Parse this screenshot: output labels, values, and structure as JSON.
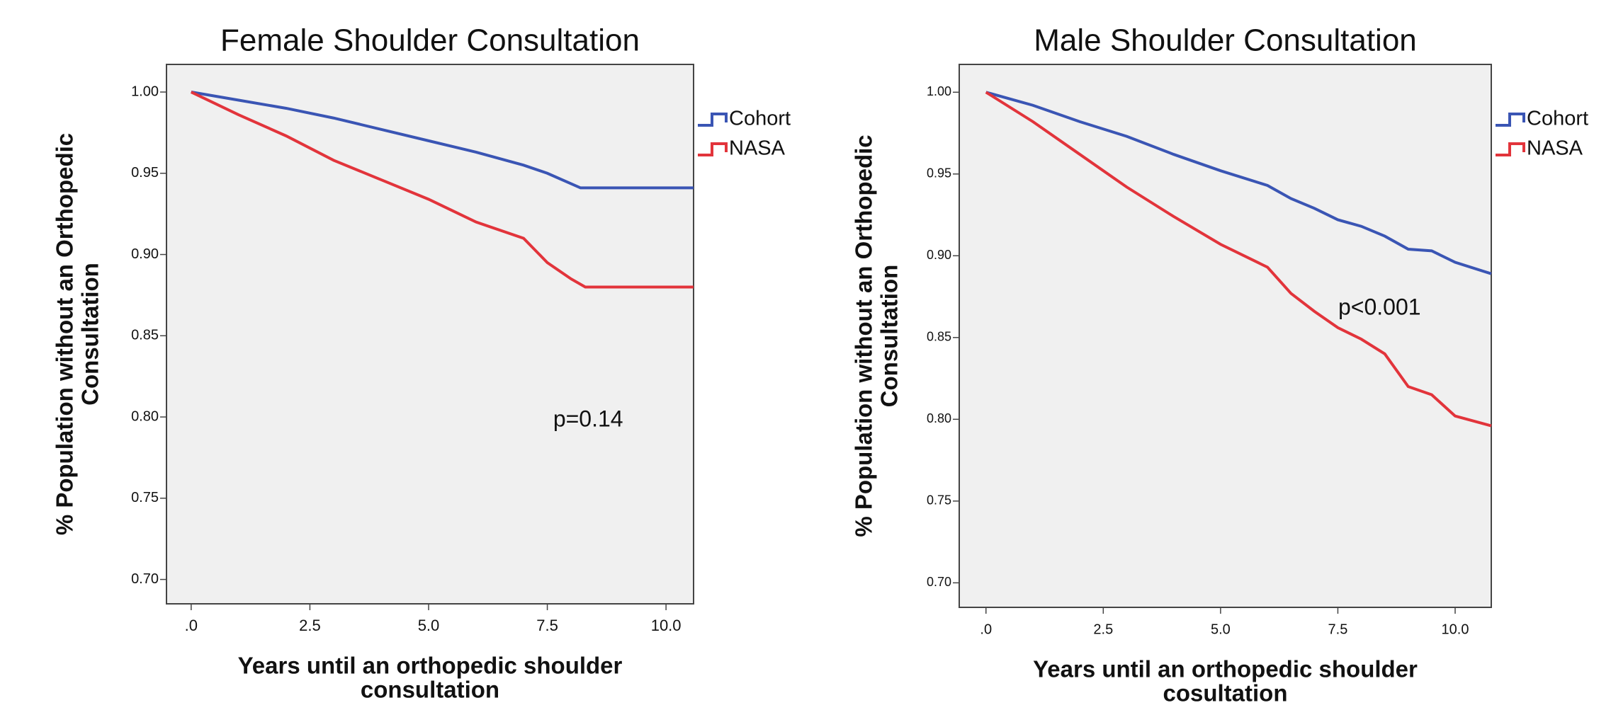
{
  "chart_data": [
    {
      "type": "line",
      "title": "Female Shoulder Consultation",
      "xlabel": [
        "Years until an orthopedic shoulder",
        "consultation"
      ],
      "ylabel": [
        "% Population without an Orthopedic",
        "Consultation"
      ],
      "xlim": [
        -0.52,
        10.58
      ],
      "ylim": [
        0.685,
        1.017
      ],
      "xticks": [
        {
          "value": 0,
          "label": ".0"
        },
        2.5,
        {
          "value": 5,
          "label": "5.0"
        },
        7.5,
        {
          "value": 10,
          "label": "10.0"
        }
      ],
      "yticks": [
        {
          "value": 1,
          "label": "1.00"
        },
        0.95,
        {
          "value": 0.9,
          "label": "0.90"
        },
        0.85,
        {
          "value": 0.8,
          "label": "0.80"
        },
        0.75,
        {
          "value": 0.7,
          "label": "0.70"
        }
      ],
      "legend": "right",
      "annotation": "p=0.14",
      "series": [
        {
          "name": "Cohort",
          "color": "#3a55b4",
          "x": [
            0,
            1,
            2,
            3,
            4,
            5,
            6,
            7,
            7.5,
            8.2,
            10.58
          ],
          "values": [
            1.0,
            0.995,
            0.99,
            0.984,
            0.977,
            0.97,
            0.963,
            0.955,
            0.95,
            0.941,
            0.941
          ]
        },
        {
          "name": "NASA",
          "color": "#e2343b",
          "x": [
            0,
            1,
            2,
            3,
            4,
            5,
            6,
            7,
            7.5,
            8,
            8.3,
            10.58
          ],
          "values": [
            1.0,
            0.986,
            0.973,
            0.958,
            0.946,
            0.934,
            0.92,
            0.91,
            0.895,
            0.885,
            0.88,
            0.88
          ]
        }
      ]
    },
    {
      "type": "line",
      "title": "Male Shoulder Consultation",
      "xlabel": [
        "Years until an orthopedic shoulder",
        "cosultation"
      ],
      "ylabel": [
        "% Population without an Orthopedic",
        "Consultation"
      ],
      "xlim": [
        -0.57,
        10.77
      ],
      "ylim": [
        0.685,
        1.017
      ],
      "xticks": [
        {
          "value": 0,
          "label": ".0"
        },
        2.5,
        {
          "value": 5,
          "label": "5.0"
        },
        7.5,
        {
          "value": 10,
          "label": "10.0"
        }
      ],
      "yticks": [
        {
          "value": 1,
          "label": "1.00"
        },
        0.95,
        {
          "value": 0.9,
          "label": "0.90"
        },
        0.85,
        {
          "value": 0.8,
          "label": "0.80"
        },
        0.75,
        {
          "value": 0.7,
          "label": "0.70"
        }
      ],
      "legend": "right",
      "annotation": "p<0.001",
      "series": [
        {
          "name": "Cohort",
          "color": "#3a55b4",
          "x": [
            0,
            1,
            2,
            3,
            4,
            5,
            6,
            6.5,
            7,
            7.5,
            8,
            8.5,
            9,
            9.5,
            10,
            10.77
          ],
          "values": [
            1.0,
            0.992,
            0.982,
            0.973,
            0.962,
            0.952,
            0.943,
            0.935,
            0.929,
            0.922,
            0.918,
            0.912,
            0.904,
            0.903,
            0.896,
            0.889
          ]
        },
        {
          "name": "NASA",
          "color": "#e2343b",
          "x": [
            0,
            1,
            2,
            3,
            4,
            5,
            6,
            6.5,
            7,
            7.5,
            8,
            8.5,
            9,
            9.5,
            10,
            10.77
          ],
          "values": [
            1.0,
            0.982,
            0.962,
            0.942,
            0.924,
            0.907,
            0.893,
            0.877,
            0.866,
            0.856,
            0.849,
            0.84,
            0.82,
            0.815,
            0.802,
            0.796
          ]
        }
      ]
    }
  ]
}
